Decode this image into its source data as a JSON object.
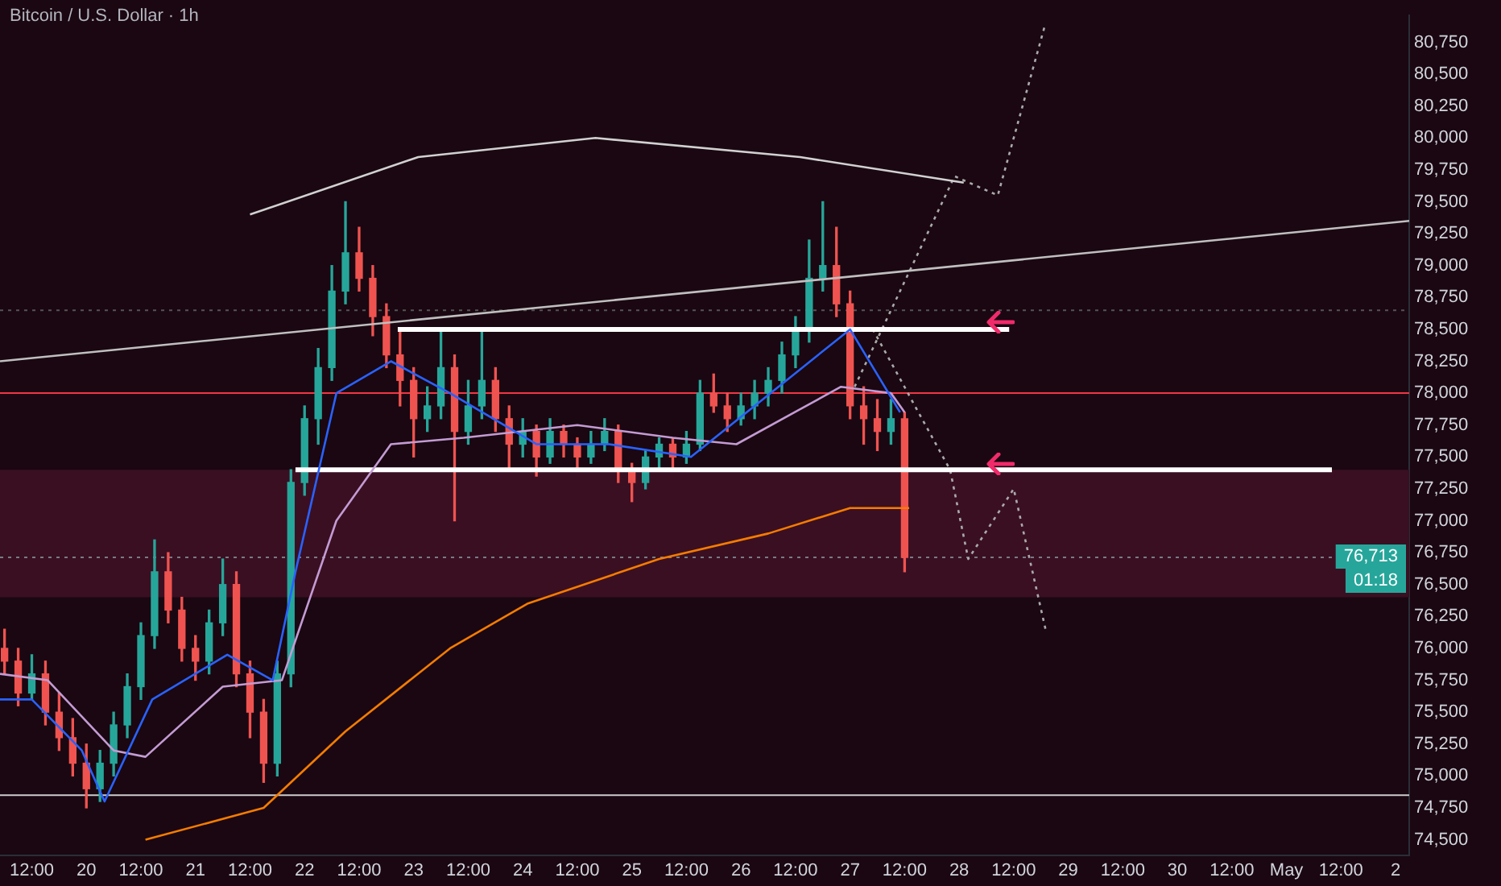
{
  "chart_data": {
    "type": "candlestick",
    "title": "Bitcoin / U.S. Dollar · 1h",
    "x": [
      "--04-19T06:00",
      "--04-19T09:00",
      "--04-19T12:00",
      "--04-19T15:00",
      "--04-19T18:00",
      "--04-19T21:00",
      "--04-20T00:00",
      "--04-20T03:00",
      "--04-20T06:00",
      "--04-20T09:00",
      "--04-20T12:00",
      "--04-20T15:00",
      "--04-20T18:00",
      "--04-20T21:00",
      "--04-21T00:00",
      "--04-21T03:00",
      "--04-21T06:00",
      "--04-21T09:00",
      "--04-21T12:00",
      "--04-21T15:00",
      "--04-21T18:00",
      "--04-21T21:00",
      "--04-22T00:00",
      "--04-22T03:00",
      "--04-22T06:00",
      "--04-22T09:00",
      "--04-22T12:00",
      "--04-22T15:00",
      "--04-22T18:00",
      "--04-22T21:00",
      "--04-23T00:00",
      "--04-23T03:00",
      "--04-23T06:00",
      "--04-23T09:00",
      "--04-23T12:00",
      "--04-23T15:00",
      "--04-23T18:00",
      "--04-23T21:00",
      "--04-24T00:00",
      "--04-24T03:00",
      "--04-24T06:00",
      "--04-24T09:00",
      "--04-24T12:00",
      "--04-24T15:00",
      "--04-24T18:00",
      "--04-24T21:00",
      "--04-25T00:00",
      "--04-25T03:00",
      "--04-25T06:00",
      "--04-25T09:00",
      "--04-25T12:00",
      "--04-25T15:00",
      "--04-25T18:00",
      "--04-25T21:00",
      "--04-26T00:00",
      "--04-26T03:00",
      "--04-26T06:00",
      "--04-26T09:00",
      "--04-26T12:00",
      "--04-26T15:00",
      "--04-26T18:00",
      "--04-26T21:00",
      "--04-27T00:00",
      "--04-27T03:00",
      "--04-27T06:00",
      "--04-27T09:00",
      "--04-27T12:00"
    ],
    "ohlc": [
      [
        76000,
        76150,
        75800,
        75900
      ],
      [
        75900,
        76000,
        75550,
        75650
      ],
      [
        75650,
        75950,
        75600,
        75800
      ],
      [
        75800,
        75900,
        75400,
        75500
      ],
      [
        75500,
        75650,
        75200,
        75300
      ],
      [
        75300,
        75450,
        75000,
        75100
      ],
      [
        75100,
        75250,
        74750,
        74900
      ],
      [
        74900,
        75200,
        74800,
        75100
      ],
      [
        75100,
        75500,
        75000,
        75400
      ],
      [
        75400,
        75800,
        75300,
        75700
      ],
      [
        75700,
        76200,
        75600,
        76100
      ],
      [
        76100,
        76850,
        76000,
        76600
      ],
      [
        76600,
        76750,
        76200,
        76300
      ],
      [
        76300,
        76400,
        75900,
        76000
      ],
      [
        76000,
        76100,
        75750,
        75900
      ],
      [
        75900,
        76300,
        75800,
        76200
      ],
      [
        76200,
        76700,
        76100,
        76500
      ],
      [
        76500,
        76600,
        75700,
        75800
      ],
      [
        75800,
        75900,
        75300,
        75500
      ],
      [
        75500,
        75600,
        74950,
        75100
      ],
      [
        75100,
        75900,
        75000,
        75800
      ],
      [
        75800,
        77400,
        75700,
        77300
      ],
      [
        77300,
        77900,
        77200,
        77800
      ],
      [
        77800,
        78350,
        77600,
        78200
      ],
      [
        78200,
        79000,
        78100,
        78800
      ],
      [
        78800,
        79500,
        78700,
        79100
      ],
      [
        79100,
        79300,
        78800,
        78900
      ],
      [
        78900,
        79000,
        78450,
        78600
      ],
      [
        78600,
        78700,
        78200,
        78300
      ],
      [
        78300,
        78500,
        77900,
        78100
      ],
      [
        78100,
        78200,
        77500,
        77800
      ],
      [
        77800,
        78050,
        77700,
        77900
      ],
      [
        77900,
        78500,
        77800,
        78200
      ],
      [
        78200,
        78300,
        77000,
        77700
      ],
      [
        77700,
        78100,
        77600,
        77900
      ],
      [
        77900,
        78500,
        77800,
        78100
      ],
      [
        78100,
        78200,
        77700,
        77800
      ],
      [
        77800,
        77900,
        77400,
        77600
      ],
      [
        77600,
        77800,
        77500,
        77700
      ],
      [
        77700,
        77750,
        77350,
        77500
      ],
      [
        77500,
        77800,
        77450,
        77700
      ],
      [
        77700,
        77750,
        77500,
        77600
      ],
      [
        77600,
        77650,
        77400,
        77500
      ],
      [
        77500,
        77700,
        77450,
        77600
      ],
      [
        77600,
        77800,
        77550,
        77700
      ],
      [
        77700,
        77750,
        77300,
        77400
      ],
      [
        77400,
        77450,
        77150,
        77300
      ],
      [
        77300,
        77550,
        77250,
        77500
      ],
      [
        77500,
        77650,
        77400,
        77600
      ],
      [
        77600,
        77650,
        77400,
        77500
      ],
      [
        77500,
        77700,
        77450,
        77600
      ],
      [
        77600,
        78100,
        77550,
        78000
      ],
      [
        78000,
        78150,
        77850,
        77900
      ],
      [
        77900,
        78000,
        77700,
        77800
      ],
      [
        77800,
        78000,
        77750,
        77900
      ],
      [
        77900,
        78100,
        77800,
        78000
      ],
      [
        78000,
        78200,
        77900,
        78100
      ],
      [
        78100,
        78400,
        78000,
        78300
      ],
      [
        78300,
        78600,
        78200,
        78500
      ],
      [
        78500,
        79200,
        78400,
        78900
      ],
      [
        78900,
        79500,
        78800,
        79000
      ],
      [
        79000,
        79300,
        78600,
        78700
      ],
      [
        78700,
        78800,
        77800,
        77900
      ],
      [
        77900,
        78050,
        77600,
        77800
      ],
      [
        77800,
        77950,
        77550,
        77700
      ],
      [
        77700,
        77950,
        77600,
        77800
      ],
      [
        77800,
        77850,
        76600,
        76713
      ]
    ],
    "series": [
      {
        "type": "line",
        "color": "#2962ff",
        "x": [
          "--04-19T05:00",
          "--04-19T12:00",
          "--04-19T23:00",
          "--04-20T04:00",
          "--04-20T14:30",
          "--04-21T07:00",
          "--04-21T17:00",
          "--04-21T22:00",
          "--04-22T07:00",
          "--04-22T19:00",
          "--04-23T08:00",
          "--04-24T03:00",
          "--04-24T19:00",
          "--04-25T13:00",
          "--04-26T03:00",
          "--04-27T00:00",
          "--04-27T11:00"
        ],
        "values": [
          75600,
          75600,
          75200,
          74800,
          75600,
          75950,
          75750,
          76600,
          78000,
          78250,
          78000,
          77600,
          77600,
          77500,
          77900,
          78500,
          77850
        ]
      },
      {
        "type": "line",
        "color": "#c39bd3",
        "x": [
          "--04-19T05:00",
          "--04-19T15:30",
          "--04-20T06:00",
          "--04-20T13:00",
          "--04-21T06:00",
          "--04-21T19:00",
          "--04-22T07:00",
          "--04-22T19:00",
          "--04-23T11:00",
          "--04-24T12:00",
          "--04-25T09:00",
          "--04-25T23:00",
          "--04-26T22:00",
          "--04-27T09:00",
          "--04-27T12:00"
        ],
        "values": [
          75800,
          75750,
          75200,
          75150,
          75700,
          75750,
          77000,
          77600,
          77650,
          77750,
          77650,
          77600,
          78050,
          78000,
          77850
        ]
      },
      {
        "type": "line",
        "color": "#f57c00",
        "x": [
          "--04-20T13:00",
          "--04-21T15:00",
          "--04-22T09:00",
          "--04-23T08:00",
          "--04-24T01:00",
          "--04-25T06:00",
          "--04-26T06:00",
          "--04-27T00:00",
          "--04-27T13:00"
        ],
        "values": [
          74500,
          74750,
          75350,
          76000,
          76350,
          76700,
          76900,
          77100,
          77100
        ]
      },
      {
        "type": "line",
        "color": "#ffffff",
        "x": [
          "--04-22T20:30",
          "--04-28T11:00"
        ],
        "values": [
          78500,
          78500
        ]
      },
      {
        "type": "line",
        "color": "#ffffff",
        "x": [
          "--04-21T22:00",
          "--05-01T10:00"
        ],
        "values": [
          77400,
          77400
        ]
      },
      {
        "type": "line",
        "color": "#bfbfbf",
        "x": [
          "--04-19T05:00",
          "--05-02T03:00"
        ],
        "values": [
          78250,
          79350
        ]
      },
      {
        "type": "line",
        "color": "#d0d0d0",
        "x": [
          "--04-21T12:00",
          "--04-23T01:00",
          "--04-24T16:00",
          "--04-26T13:00",
          "--04-28T01:00"
        ],
        "values": [
          79400,
          79850,
          80000,
          79850,
          79650
        ]
      },
      {
        "type": "line",
        "color": "#aaaaaa",
        "line_style": "dotted",
        "x": [
          "--04-27T01:00",
          "--04-27T23:00",
          "--04-28T08:30",
          "--04-28T19:00"
        ],
        "values": [
          78050,
          79700,
          79550,
          80900
        ]
      },
      {
        "type": "line",
        "color": "#aaaaaa",
        "line_style": "dotted",
        "x": [
          "--04-27T05:00",
          "--04-27T22:00",
          "--04-28T02:00",
          "--04-28T12:00",
          "--04-28T19:00"
        ],
        "values": [
          78500,
          77400,
          76700,
          77250,
          76150
        ]
      }
    ],
    "ref_lines": [
      {
        "axis": "y",
        "value": 78000,
        "color": "#f23645"
      },
      {
        "axis": "y",
        "value": 76713,
        "color": "#787b86",
        "line_style": "dotted"
      },
      {
        "axis": "y",
        "value": 78650,
        "color": "#555555",
        "line_style": "dotted"
      },
      {
        "axis": "y",
        "value": 74850,
        "color": "#cccccc"
      }
    ],
    "bands": [
      {
        "axis": "y",
        "from": 76400,
        "to": 77400,
        "color": "#3a0f22"
      }
    ],
    "annotations": [
      "76,713",
      "01:18"
    ],
    "xlim": [
      "--04-19T05:00",
      "--05-02T03:00"
    ],
    "ylim": [
      74380,
      80960
    ],
    "xticks": [
      {
        "value": "--04-19T12:00",
        "label": "12:00"
      },
      {
        "value": "--04-20T00:00",
        "label": "20"
      },
      {
        "value": "--04-20T12:00",
        "label": "12:00"
      },
      {
        "value": "--04-21T00:00",
        "label": "21"
      },
      {
        "value": "--04-21T12:00",
        "label": "12:00"
      },
      {
        "value": "--04-22T00:00",
        "label": "22"
      },
      {
        "value": "--04-22T12:00",
        "label": "12:00"
      },
      {
        "value": "--04-23T00:00",
        "label": "23"
      },
      {
        "value": "--04-23T12:00",
        "label": "12:00"
      },
      {
        "value": "--04-24T00:00",
        "label": "24"
      },
      {
        "value": "--04-24T12:00",
        "label": "12:00"
      },
      {
        "value": "--04-25T00:00",
        "label": "25"
      },
      {
        "value": "--04-25T12:00",
        "label": "12:00"
      },
      {
        "value": "--04-26T00:00",
        "label": "26"
      },
      {
        "value": "--04-26T12:00",
        "label": "12:00"
      },
      {
        "value": "--04-27T00:00",
        "label": "27"
      },
      {
        "value": "--04-27T12:00",
        "label": "12:00"
      },
      {
        "value": "--04-28T00:00",
        "label": "28"
      },
      {
        "value": "--04-28T12:00",
        "label": "12:00"
      },
      {
        "value": "--04-29T00:00",
        "label": "29"
      },
      {
        "value": "--04-29T12:00",
        "label": "12:00"
      },
      {
        "value": "--04-30T00:00",
        "label": "30"
      },
      {
        "value": "--04-30T12:00",
        "label": "12:00"
      },
      {
        "value": "--05-01T00:00",
        "label": "May"
      },
      {
        "value": "--05-01T12:00",
        "label": "12:00"
      },
      {
        "value": "--05-02T00:00",
        "label": "2"
      }
    ],
    "yticks": [
      {
        "value": 74500,
        "label": "74,500"
      },
      {
        "value": 74750,
        "label": "74,750"
      },
      {
        "value": 75000,
        "label": "75,000"
      },
      {
        "value": 75250,
        "label": "75,250"
      },
      {
        "value": 75500,
        "label": "75,500"
      },
      {
        "value": 75750,
        "label": "75,750"
      },
      {
        "value": 76000,
        "label": "76,000"
      },
      {
        "value": 76250,
        "label": "76,250"
      },
      {
        "value": 76500,
        "label": "76,500"
      },
      {
        "value": 76750,
        "label": "76,750"
      },
      {
        "value": 77000,
        "label": "77,000"
      },
      {
        "value": 77250,
        "label": "77,250"
      },
      {
        "value": 77500,
        "label": "77,500"
      },
      {
        "value": 77750,
        "label": "77,750"
      },
      {
        "value": 78000,
        "label": "78,000"
      },
      {
        "value": 78250,
        "label": "78,250"
      },
      {
        "value": 78500,
        "label": "78,500"
      },
      {
        "value": 78750,
        "label": "78,750"
      },
      {
        "value": 79000,
        "label": "79,000"
      },
      {
        "value": 79250,
        "label": "79,250"
      },
      {
        "value": 79500,
        "label": "79,500"
      },
      {
        "value": 79750,
        "label": "79,750"
      },
      {
        "value": 80000,
        "label": "80,000"
      },
      {
        "value": 80250,
        "label": "80,250"
      },
      {
        "value": 80500,
        "label": "80,500"
      },
      {
        "value": 80750,
        "label": "80,750"
      }
    ],
    "grid": false,
    "legend": false,
    "marker": "none"
  }
}
